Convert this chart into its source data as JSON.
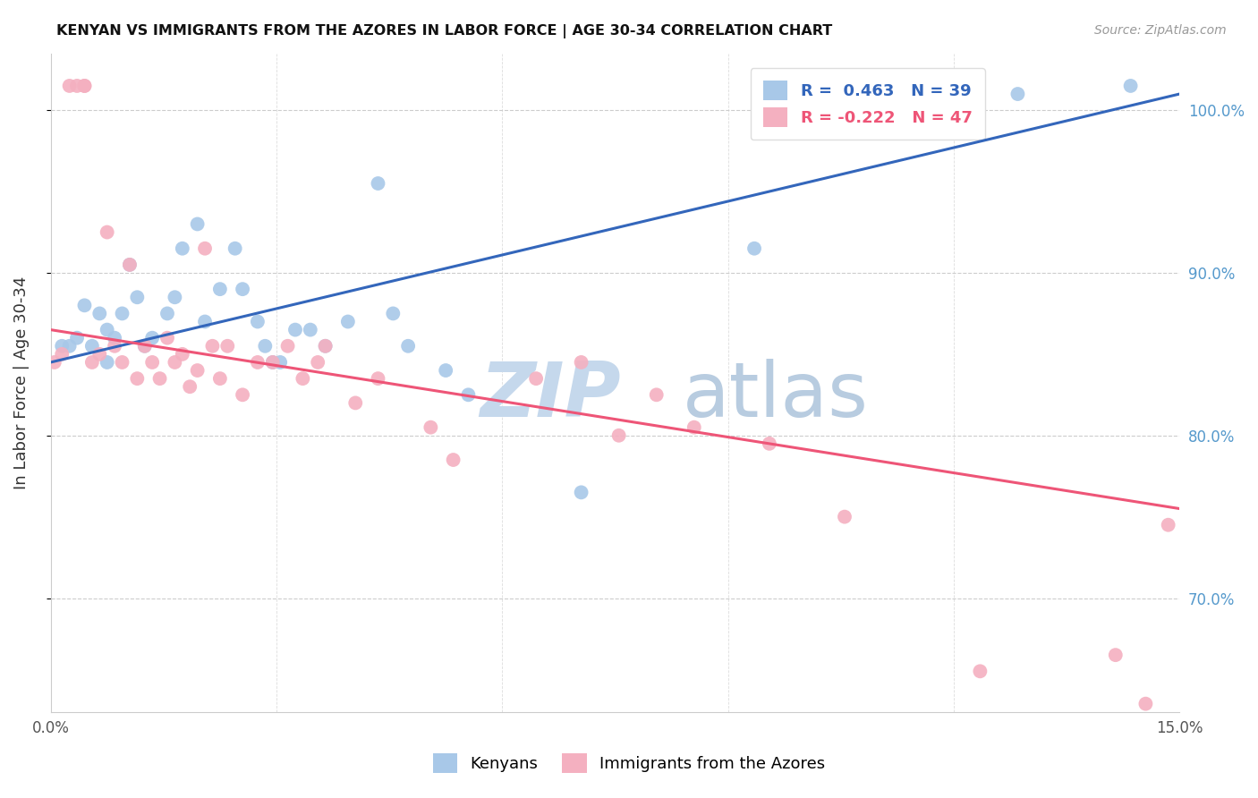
{
  "title": "KENYAN VS IMMIGRANTS FROM THE AZORES IN LABOR FORCE | AGE 30-34 CORRELATION CHART",
  "source": "Source: ZipAtlas.com",
  "ylabel": "In Labor Force | Age 30-34",
  "xlim": [
    0.0,
    15.0
  ],
  "ylim": [
    63.0,
    103.5
  ],
  "x_ticks": [
    0.0,
    3.0,
    6.0,
    9.0,
    12.0,
    15.0
  ],
  "x_tick_labels": [
    "0.0%",
    "",
    "",
    "",
    "",
    "15.0%"
  ],
  "y_ticks_right": [
    70.0,
    80.0,
    90.0,
    100.0
  ],
  "y_tick_labels_right": [
    "70.0%",
    "80.0%",
    "90.0%",
    "100.0%"
  ],
  "blue_r": 0.463,
  "blue_n": 39,
  "pink_r": -0.222,
  "pink_n": 47,
  "blue_color": "#A8C8E8",
  "pink_color": "#F4B0C0",
  "blue_line_color": "#3366BB",
  "pink_line_color": "#EE5577",
  "watermark": "ZIPatlas",
  "watermark_color": "#C5D8EC",
  "blue_scatter_x": [
    0.15,
    0.25,
    0.35,
    0.45,
    0.55,
    0.65,
    0.75,
    0.75,
    0.85,
    0.95,
    1.05,
    1.15,
    1.25,
    1.35,
    1.55,
    1.65,
    1.75,
    1.95,
    2.05,
    2.25,
    2.45,
    2.55,
    2.75,
    2.85,
    2.95,
    3.05,
    3.25,
    3.45,
    3.65,
    3.95,
    4.35,
    4.55,
    4.75,
    5.25,
    5.55,
    7.05,
    9.35,
    12.85,
    14.35
  ],
  "blue_scatter_y": [
    85.5,
    85.5,
    86.0,
    88.0,
    85.5,
    87.5,
    86.5,
    84.5,
    86.0,
    87.5,
    90.5,
    88.5,
    85.5,
    86.0,
    87.5,
    88.5,
    91.5,
    93.0,
    87.0,
    89.0,
    91.5,
    89.0,
    87.0,
    85.5,
    84.5,
    84.5,
    86.5,
    86.5,
    85.5,
    87.0,
    95.5,
    87.5,
    85.5,
    84.0,
    82.5,
    76.5,
    91.5,
    101.0,
    101.5
  ],
  "pink_scatter_x": [
    0.05,
    0.15,
    0.25,
    0.35,
    0.45,
    0.45,
    0.55,
    0.65,
    0.75,
    0.85,
    0.95,
    1.05,
    1.15,
    1.25,
    1.35,
    1.45,
    1.55,
    1.65,
    1.75,
    1.85,
    1.95,
    2.05,
    2.15,
    2.25,
    2.35,
    2.55,
    2.75,
    2.95,
    3.15,
    3.35,
    3.55,
    3.65,
    4.05,
    4.35,
    5.05,
    5.35,
    6.45,
    7.05,
    8.55,
    9.55,
    7.55,
    8.05,
    10.55,
    12.35,
    14.15,
    14.55,
    14.85
  ],
  "pink_scatter_y": [
    84.5,
    85.0,
    101.5,
    101.5,
    101.5,
    101.5,
    84.5,
    85.0,
    92.5,
    85.5,
    84.5,
    90.5,
    83.5,
    85.5,
    84.5,
    83.5,
    86.0,
    84.5,
    85.0,
    83.0,
    84.0,
    91.5,
    85.5,
    83.5,
    85.5,
    82.5,
    84.5,
    84.5,
    85.5,
    83.5,
    84.5,
    85.5,
    82.0,
    83.5,
    80.5,
    78.5,
    83.5,
    84.5,
    80.5,
    79.5,
    80.0,
    82.5,
    75.0,
    65.5,
    66.5,
    63.5,
    74.5
  ]
}
